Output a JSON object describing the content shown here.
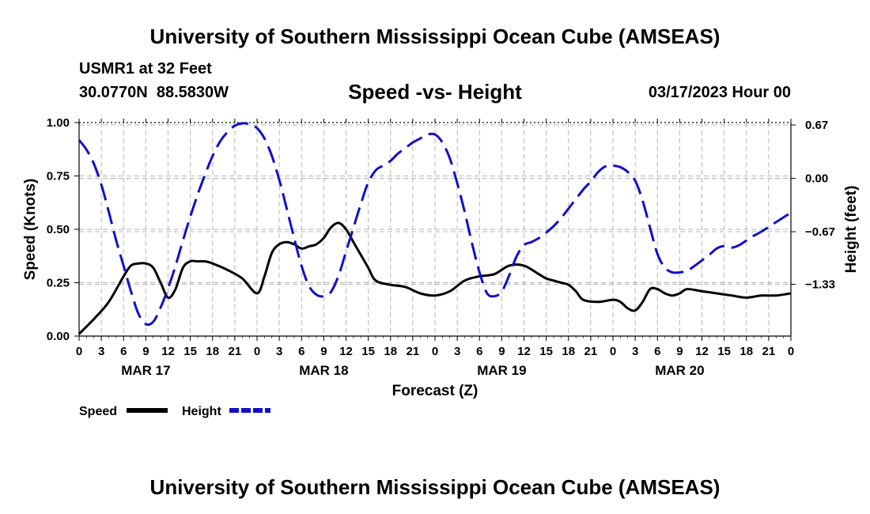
{
  "header": {
    "title": "University of Southern Mississippi Ocean Cube (AMSEAS)",
    "station": "USMR1 at 32 Feet",
    "coords": "30.0770N  88.5830W",
    "datetime": "03/17/2023 Hour 00"
  },
  "footer": {
    "title": "University of Southern Mississippi Ocean Cube (AMSEAS)"
  },
  "legend": {
    "speed_label": "Speed",
    "height_label": "Height"
  },
  "colors": {
    "speed": "#000000",
    "height": "#1010cc",
    "grid": "#b4b4b4"
  },
  "chart_data": {
    "type": "line",
    "title": "Speed -vs- Height",
    "xlabel": "Forecast (Z)",
    "ylabel": "Speed (Knots)",
    "y2label": "Height (feet)",
    "xlim": [
      0,
      96
    ],
    "ylim": [
      0,
      1.0
    ],
    "y2lim": [
      -1.98,
      0.7
    ],
    "x_ticks": [
      0,
      3,
      6,
      9,
      12,
      15,
      18,
      21,
      24,
      27,
      30,
      33,
      36,
      39,
      42,
      45,
      48,
      51,
      54,
      57,
      60,
      63,
      66,
      69,
      72,
      75,
      78,
      81,
      84,
      87,
      90,
      93,
      96
    ],
    "x_tick_labels": [
      "0",
      "3",
      "6",
      "9",
      "12",
      "15",
      "18",
      "21",
      "0",
      "3",
      "6",
      "9",
      "12",
      "15",
      "18",
      "21",
      "0",
      "3",
      "6",
      "9",
      "12",
      "15",
      "18",
      "21",
      "0",
      "3",
      "6",
      "9",
      "12",
      "15",
      "18",
      "21",
      "0"
    ],
    "day_labels": [
      {
        "label": "MAR 17",
        "hour": 9
      },
      {
        "label": "MAR 18",
        "hour": 33
      },
      {
        "label": "MAR 19",
        "hour": 57
      },
      {
        "label": "MAR 20",
        "hour": 81
      }
    ],
    "y_ticks": [
      0,
      0.25,
      0.5,
      0.75,
      1.0
    ],
    "y_tick_labels": [
      "0.00",
      "0.25",
      "0.50",
      "0.75",
      "1.00"
    ],
    "y2_ticks": [
      0.67,
      0.0,
      -0.67,
      -1.33
    ],
    "y2_tick_labels": [
      "0.67",
      "0.00",
      "−0.67",
      "−1.33"
    ],
    "series": [
      {
        "name": "Speed",
        "axis": "left",
        "style": "solid",
        "x": [
          0,
          2,
          4,
          6,
          7,
          8,
          9,
          10,
          11,
          12,
          13,
          14,
          15,
          16,
          17,
          18,
          20,
          22,
          24,
          25,
          26,
          27,
          28,
          29,
          30,
          31,
          32,
          33,
          34,
          35,
          36,
          37,
          38,
          39,
          40,
          42,
          44,
          46,
          48,
          50,
          52,
          54,
          56,
          58,
          60,
          62,
          63,
          64,
          65,
          66,
          67,
          68,
          70,
          72,
          73,
          74,
          75,
          76,
          77,
          78,
          79,
          80,
          81,
          82,
          84,
          86,
          88,
          90,
          92,
          94,
          96
        ],
        "values": [
          0.01,
          0.08,
          0.16,
          0.28,
          0.33,
          0.34,
          0.34,
          0.32,
          0.25,
          0.18,
          0.22,
          0.32,
          0.35,
          0.35,
          0.35,
          0.34,
          0.31,
          0.27,
          0.2,
          0.28,
          0.39,
          0.43,
          0.44,
          0.43,
          0.41,
          0.42,
          0.43,
          0.46,
          0.51,
          0.53,
          0.5,
          0.44,
          0.38,
          0.32,
          0.26,
          0.24,
          0.23,
          0.2,
          0.19,
          0.21,
          0.26,
          0.28,
          0.29,
          0.33,
          0.33,
          0.29,
          0.27,
          0.26,
          0.25,
          0.24,
          0.21,
          0.17,
          0.16,
          0.17,
          0.16,
          0.13,
          0.12,
          0.16,
          0.22,
          0.22,
          0.2,
          0.19,
          0.2,
          0.22,
          0.21,
          0.2,
          0.19,
          0.18,
          0.19,
          0.19,
          0.2
        ]
      },
      {
        "name": "Height",
        "axis": "right",
        "style": "dashed",
        "x": [
          0,
          1,
          2,
          3,
          4,
          5,
          6,
          7,
          8,
          9,
          10,
          11,
          12,
          13,
          14,
          15,
          16,
          17,
          18,
          19,
          20,
          21,
          22,
          23,
          24,
          25,
          26,
          27,
          28,
          29,
          30,
          31,
          32,
          33,
          34,
          35,
          36,
          37,
          38,
          39,
          40,
          41,
          42,
          43,
          44,
          45,
          46,
          47,
          48,
          49,
          50,
          51,
          52,
          53,
          54,
          55,
          56,
          57,
          58,
          59,
          60,
          61,
          62,
          63,
          64,
          65,
          66,
          67,
          68,
          69,
          70,
          71,
          72,
          73,
          74,
          75,
          76,
          77,
          78,
          79,
          80,
          81,
          82,
          83,
          84,
          85,
          86,
          87,
          88,
          89,
          90,
          91,
          92,
          93,
          94,
          95,
          96
        ],
        "values": [
          0.48,
          0.36,
          0.18,
          -0.08,
          -0.42,
          -0.78,
          -1.1,
          -1.42,
          -1.7,
          -1.83,
          -1.8,
          -1.62,
          -1.38,
          -1.1,
          -0.78,
          -0.48,
          -0.2,
          0.05,
          0.28,
          0.46,
          0.58,
          0.66,
          0.69,
          0.68,
          0.63,
          0.5,
          0.28,
          -0.02,
          -0.38,
          -0.75,
          -1.1,
          -1.35,
          -1.46,
          -1.48,
          -1.42,
          -1.22,
          -0.92,
          -0.62,
          -0.32,
          -0.05,
          0.1,
          0.16,
          0.22,
          0.31,
          0.38,
          0.45,
          0.5,
          0.55,
          0.55,
          0.45,
          0.25,
          -0.06,
          -0.42,
          -0.82,
          -1.18,
          -1.44,
          -1.48,
          -1.42,
          -1.22,
          -0.98,
          -0.84,
          -0.8,
          -0.75,
          -0.68,
          -0.6,
          -0.5,
          -0.38,
          -0.26,
          -0.14,
          -0.04,
          0.08,
          0.15,
          0.16,
          0.14,
          0.08,
          -0.03,
          -0.28,
          -0.62,
          -0.95,
          -1.12,
          -1.18,
          -1.18,
          -1.16,
          -1.1,
          -1.03,
          -0.96,
          -0.88,
          -0.85,
          -0.87,
          -0.84,
          -0.78,
          -0.72,
          -0.67,
          -0.61,
          -0.55,
          -0.49,
          -0.43
        ]
      }
    ]
  }
}
